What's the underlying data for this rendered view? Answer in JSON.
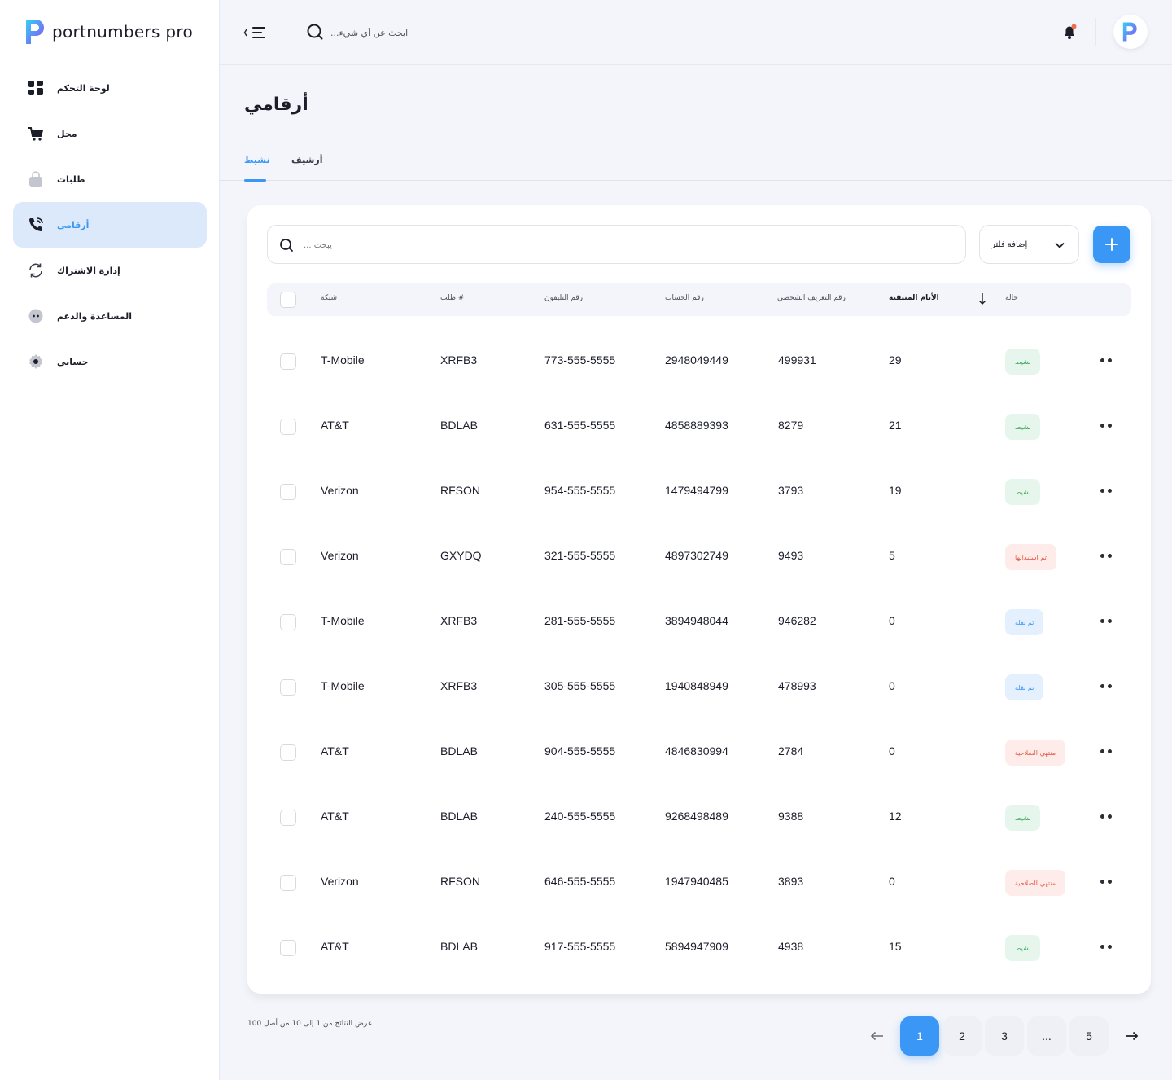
{
  "brand": {
    "name": "portnumbers pro"
  },
  "sidebar": {
    "items": [
      {
        "label": "لوحة التحكم",
        "icon": "dashboard-grid-icon"
      },
      {
        "label": "محل",
        "icon": "shopping-cart-icon"
      },
      {
        "label": "طلبات",
        "icon": "shopping-bag-icon"
      },
      {
        "label": "أرقامي",
        "icon": "phone-icon",
        "active": true
      },
      {
        "label": "إدارة الاشتراك",
        "icon": "refresh-icon"
      },
      {
        "label": "المساعدة والدعم",
        "icon": "chat-bubble-icon"
      },
      {
        "label": "حسابي",
        "icon": "gear-icon"
      }
    ]
  },
  "header": {
    "search_placeholder": "ابحث عن أي شيء...",
    "notification_dot_color": "#f26b4f"
  },
  "page": {
    "title": "أرقامي",
    "tabs": [
      {
        "label": "نشيط",
        "active": true
      },
      {
        "label": "أرشيف",
        "active": false
      }
    ]
  },
  "toolbar": {
    "filter_label": "إضافة فلتر",
    "search_placeholder": "يبحث ..."
  },
  "table": {
    "headers": {
      "network": "شبكة",
      "order": "طلب #",
      "phone": "رقم التليفون",
      "account": "رقم الحساب",
      "pin": "رقم التعريف الشخصي",
      "days_left": "الأيام المتبقية",
      "status": "حالة"
    },
    "rows": [
      {
        "network": "T-Mobile",
        "order": "XRFB3",
        "phone": "773-555-5555",
        "account": "2948049449",
        "pin": "499931",
        "days": "29",
        "status": "نشيط",
        "status_type": "active"
      },
      {
        "network": "AT&T",
        "order": "BDLAB",
        "phone": "631-555-5555",
        "account": "4858889393",
        "pin": "8279",
        "days": "21",
        "status": "نشيط",
        "status_type": "active"
      },
      {
        "network": "Verizon",
        "order": "RFSON",
        "phone": "954-555-5555",
        "account": "1479494799",
        "pin": "3793",
        "days": "19",
        "status": "نشيط",
        "status_type": "active"
      },
      {
        "network": "Verizon",
        "order": "GXYDQ",
        "phone": "321-555-5555",
        "account": "4897302749",
        "pin": "9493",
        "days": "5",
        "status": "تم استبدالها",
        "status_type": "replaced"
      },
      {
        "network": "T-Mobile",
        "order": "XRFB3",
        "phone": "281-555-5555",
        "account": "3894948044",
        "pin": "946282",
        "days": "0",
        "status": "تم نقله",
        "status_type": "moved"
      },
      {
        "network": "T-Mobile",
        "order": "XRFB3",
        "phone": "305-555-5555",
        "account": "1940848949",
        "pin": "478993",
        "days": "0",
        "status": "تم نقله",
        "status_type": "moved"
      },
      {
        "network": "AT&T",
        "order": "BDLAB",
        "phone": "904-555-5555",
        "account": "4846830994",
        "pin": "2784",
        "days": "0",
        "status": "منتهي الصلاحية",
        "status_type": "expired"
      },
      {
        "network": "AT&T",
        "order": "BDLAB",
        "phone": "240-555-5555",
        "account": "9268498489",
        "pin": "9388",
        "days": "12",
        "status": "نشيط",
        "status_type": "active"
      },
      {
        "network": "Verizon",
        "order": "RFSON",
        "phone": "646-555-5555",
        "account": "1947940485",
        "pin": "3893",
        "days": "0",
        "status": "منتهي الصلاحية",
        "status_type": "expired"
      },
      {
        "network": "AT&T",
        "order": "BDLAB",
        "phone": "917-555-5555",
        "account": "5894947909",
        "pin": "4938",
        "days": "15",
        "status": "نشيط",
        "status_type": "active"
      }
    ]
  },
  "pagination": {
    "results_text": "عرض النتائج من 1 إلى 10 من أصل 100",
    "pages": [
      "1",
      "2",
      "3",
      "...",
      "5"
    ],
    "current": "1"
  },
  "colors": {
    "accent": "#3b97f5",
    "active_bg": "#e7f6ec",
    "active_text": "#3aa65a",
    "danger_bg": "#fdecea",
    "danger_text": "#e5553f",
    "info_bg": "#e4f0fd"
  }
}
